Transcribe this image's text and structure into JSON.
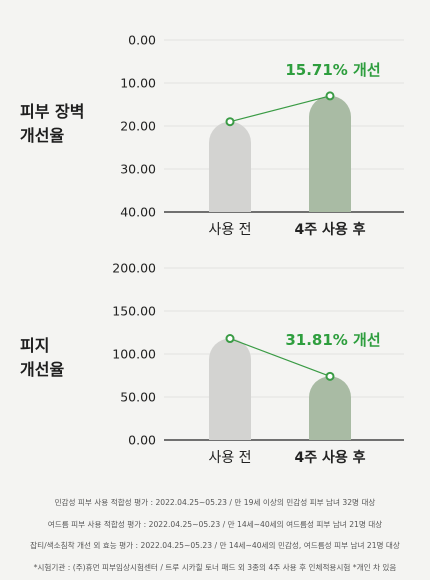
{
  "colors": {
    "before_bar": "#d3d3d1",
    "after_bar": "#a9bba4",
    "line": "#3a9b45",
    "accent_text": "#2e9e3e",
    "axis": "#222222"
  },
  "chart_data": [
    {
      "type": "bar",
      "row_label": [
        "피부 장벽",
        "개선율"
      ],
      "categories": [
        "사용 전",
        "4주 사용 후"
      ],
      "values": [
        19.0,
        13.0
      ],
      "ylim": [
        0,
        40
      ],
      "y_inverted": true,
      "yticks": [
        "0.00",
        "10.00",
        "20.00",
        "30.00",
        "40.00"
      ],
      "annotation": "15.71% 개선",
      "grid": true
    },
    {
      "type": "bar",
      "row_label": [
        "피지",
        "개선율"
      ],
      "categories": [
        "사용 전",
        "4주 사용 후"
      ],
      "values": [
        118.0,
        74.0
      ],
      "ylim": [
        0,
        200
      ],
      "y_inverted": false,
      "yticks": [
        "0.00",
        "50.00",
        "100.00",
        "150.00",
        "200.00"
      ],
      "annotation": "31.81% 개선",
      "grid": true
    }
  ],
  "footnotes": [
    "민감성 피부 사용 적합성 평가 : 2022.04.25~05.23 / 만 19세 이상의 민감성 피부 남녀 32명 대상",
    "여드름 피부 사용 적합성 평가 : 2022.04.25~05.23 / 만 14세~40세의 여드름성 피부 남녀 21명 대상",
    "잡티/색소침착 개선 외 효능 평가 : 2022.04.25~05.23 / 만 14세~40세의 민감성, 여드름성 피부 남녀 21명 대상",
    "*시험기관 : (주)휴먼 피부임상시험센터 / 트루 시카힐 토너 패드 외 3종의 4주 사용 후 인체적용시험 *개인 차 있음"
  ]
}
